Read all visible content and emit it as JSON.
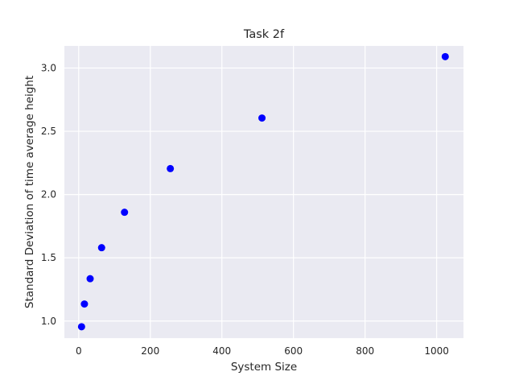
{
  "chart_data": {
    "type": "scatter",
    "title": "Task 2f",
    "xlabel": "System Size",
    "ylabel": "Standard Deviation of time average height",
    "xlim": [
      -40,
      1075
    ],
    "ylim": [
      0.865,
      3.175
    ],
    "xticks": [
      0,
      200,
      400,
      600,
      800,
      1000
    ],
    "yticks": [
      1.0,
      1.5,
      2.0,
      2.5,
      3.0
    ],
    "xtick_labels": [
      "0",
      "200",
      "400",
      "600",
      "800",
      "1000"
    ],
    "ytick_labels": [
      "1.0",
      "1.5",
      "2.0",
      "2.5",
      "3.0"
    ],
    "grid": true,
    "background_color": "#eaeaf2",
    "grid_color": "#ffffff",
    "marker_color": "#0000ff",
    "series": [
      {
        "x": [
          8,
          16,
          32,
          64,
          128,
          256,
          512,
          1024
        ],
        "y": [
          0.955,
          1.135,
          1.335,
          1.58,
          1.86,
          2.205,
          2.605,
          3.09
        ]
      }
    ]
  }
}
